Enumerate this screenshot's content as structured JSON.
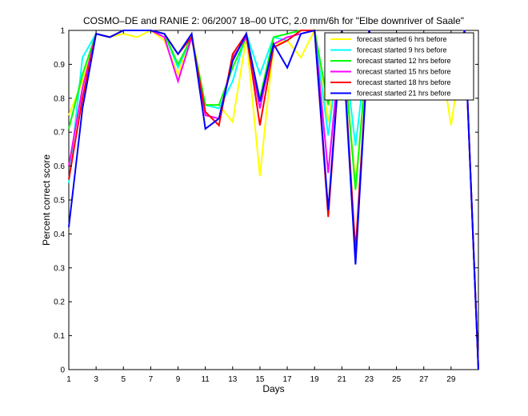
{
  "chart_data": {
    "type": "line",
    "title": "COSMO–DE and RANIE 2: 06/2007 18–00 UTC, 2.0 mm/6h for \"Elbe downriver of Saale\"",
    "xlabel": "Days",
    "ylabel": "Percent correct score",
    "xlim": [
      1,
      31
    ],
    "ylim": [
      0,
      1
    ],
    "xticks": [
      "1",
      "3",
      "5",
      "7",
      "9",
      "11",
      "13",
      "15",
      "17",
      "19",
      "21",
      "23",
      "25",
      "27",
      "29"
    ],
    "yticks": [
      "0",
      "0.1",
      "0.2",
      "0.3",
      "0.4",
      "0.5",
      "0.6",
      "0.7",
      "0.8",
      "0.9",
      "1"
    ],
    "grid": false,
    "legend_position": "top-right",
    "x": [
      1,
      2,
      3,
      4,
      5,
      6,
      7,
      8,
      9,
      10,
      11,
      12,
      13,
      14,
      15,
      16,
      17,
      18,
      19,
      20,
      21,
      22,
      23,
      24,
      25,
      26,
      27,
      28,
      29,
      30,
      31
    ],
    "series": [
      {
        "name": "forecast started 6 hrs before",
        "color": "#ffff00",
        "values": [
          0.75,
          0.85,
          0.99,
          0.98,
          0.99,
          0.98,
          1.0,
          0.97,
          0.87,
          0.99,
          0.78,
          0.78,
          0.73,
          0.98,
          0.57,
          0.96,
          0.97,
          0.92,
          1.0,
          0.73,
          0.99,
          0.55,
          0.98,
          0.85,
          0.98,
          0.85,
          0.88,
          0.97,
          0.72,
          1.0,
          0.0
        ]
      },
      {
        "name": "forecast started 9 hrs before",
        "color": "#00ffff",
        "values": [
          0.55,
          0.92,
          0.99,
          0.98,
          1.0,
          1.0,
          1.0,
          0.99,
          0.89,
          0.98,
          0.78,
          0.77,
          0.85,
          0.99,
          0.87,
          0.98,
          0.97,
          1.0,
          1.0,
          0.69,
          1.0,
          0.66,
          1.0,
          0.81,
          0.99,
          0.87,
          0.85,
          0.97,
          0.9,
          1.0,
          0.0
        ]
      },
      {
        "name": "forecast started 12 hrs before",
        "color": "#00ff00",
        "values": [
          0.71,
          0.87,
          0.99,
          0.98,
          1.0,
          1.0,
          1.0,
          0.99,
          0.9,
          0.98,
          0.78,
          0.78,
          0.89,
          0.98,
          0.8,
          0.98,
          0.99,
          1.0,
          1.0,
          0.78,
          1.0,
          0.53,
          1.0,
          0.84,
          0.99,
          0.84,
          0.86,
          0.98,
          0.91,
          1.0,
          0.0
        ]
      },
      {
        "name": "forecast started 15 hrs before",
        "color": "#ff00ff",
        "values": [
          0.6,
          0.83,
          0.99,
          0.98,
          1.0,
          1.0,
          1.0,
          0.98,
          0.85,
          0.98,
          0.75,
          0.74,
          0.92,
          0.98,
          0.77,
          0.96,
          0.98,
          0.99,
          1.0,
          0.58,
          1.0,
          0.81,
          1.0,
          0.84,
          0.98,
          0.83,
          0.8,
          0.97,
          0.88,
          1.0,
          0.0
        ]
      },
      {
        "name": "forecast started 18 hrs before",
        "color": "#ff0000",
        "values": [
          0.56,
          0.8,
          0.99,
          0.98,
          1.0,
          1.0,
          1.0,
          0.99,
          0.93,
          0.98,
          0.76,
          0.72,
          0.93,
          0.99,
          0.72,
          0.95,
          0.97,
          1.0,
          1.0,
          0.45,
          1.0,
          0.35,
          1.0,
          0.86,
          0.99,
          0.81,
          0.82,
          0.98,
          0.89,
          1.0,
          0.0
        ]
      },
      {
        "name": "forecast started 21 hrs before",
        "color": "#0000ff",
        "values": [
          0.42,
          0.77,
          0.99,
          0.98,
          1.0,
          1.0,
          1.0,
          0.99,
          0.93,
          0.99,
          0.71,
          0.74,
          0.91,
          0.99,
          0.79,
          0.96,
          0.89,
          0.99,
          1.0,
          0.47,
          1.0,
          0.31,
          1.0,
          0.84,
          0.99,
          0.86,
          0.86,
          0.98,
          0.88,
          1.0,
          0.0
        ]
      }
    ]
  }
}
